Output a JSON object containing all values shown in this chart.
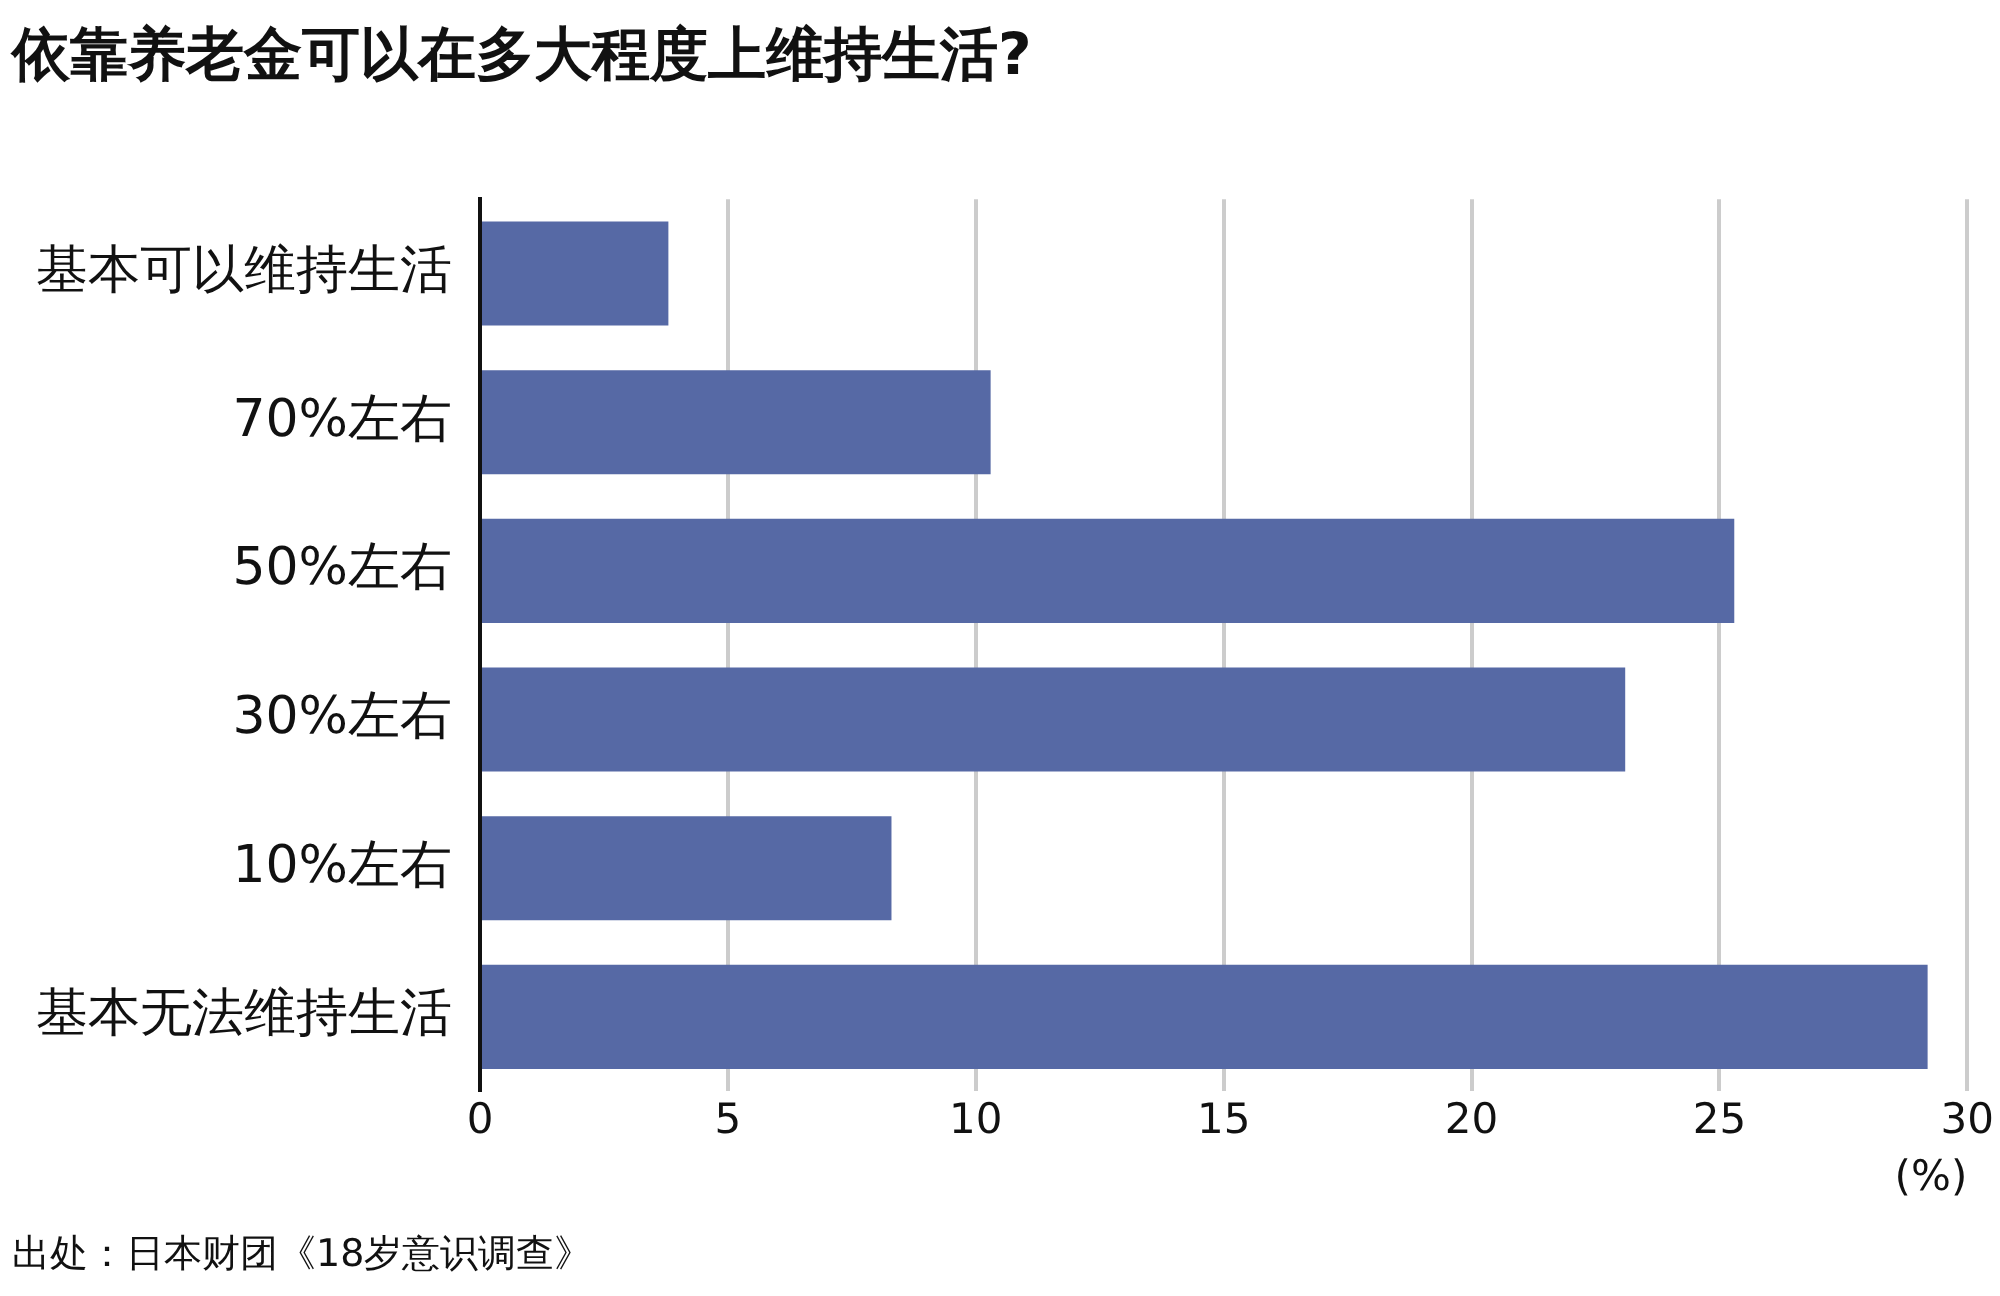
{
  "chart_data": {
    "type": "bar",
    "orientation": "horizontal",
    "title": "依靠养老金可以在多大程度上维持生活?",
    "categories": [
      "基本可以维持生活",
      "70%左右",
      "50%左右",
      "30%左右",
      "10%左右",
      "基本无法维持生活"
    ],
    "values": [
      3.8,
      10.3,
      25.3,
      23.1,
      8.3,
      29.2
    ],
    "color": "#5669a5",
    "xlim": [
      0,
      30
    ],
    "xticks": [
      0,
      5,
      10,
      15,
      20,
      25,
      30
    ],
    "xlabel": "(%)",
    "grid": "x",
    "annotations": [
      "出处：日本财团《18岁意识调查》"
    ]
  }
}
